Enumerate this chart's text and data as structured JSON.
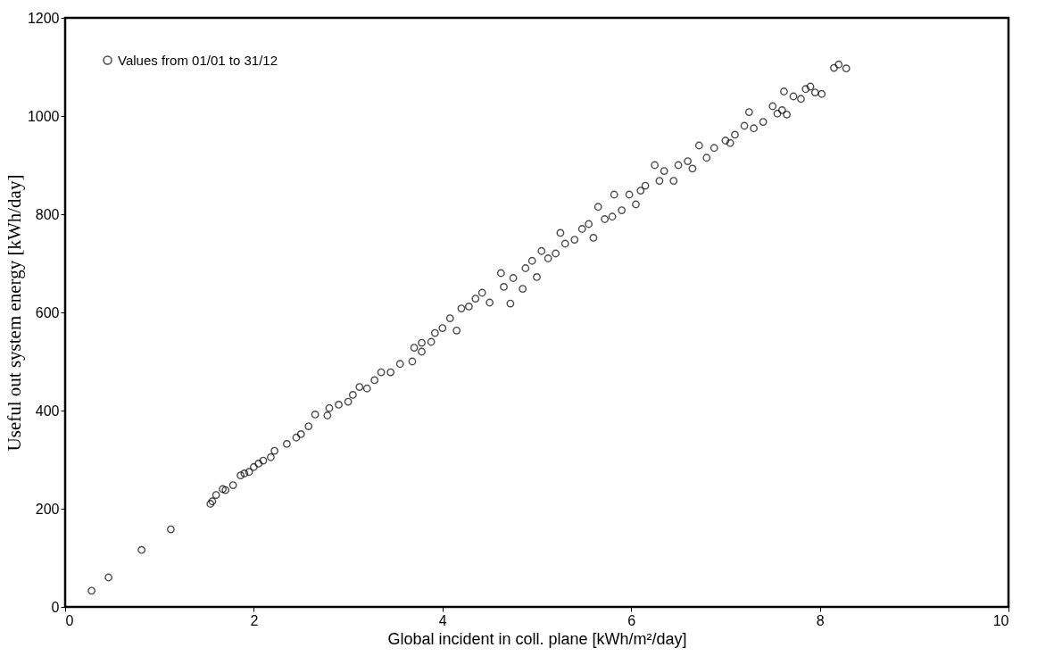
{
  "chart_data": {
    "type": "scatter",
    "xlabel": "Global incident in coll. plane [kWh/m²/day]",
    "ylabel": "Useful out system energy [kWh/day]",
    "xlim": [
      0,
      10
    ],
    "xticks": [
      0,
      2,
      4,
      6,
      8,
      10
    ],
    "ylim": [
      0,
      1200
    ],
    "yticks": [
      0,
      200,
      400,
      600,
      800,
      1000,
      1200
    ],
    "grid": false,
    "legend": "top left",
    "marker": "circle",
    "series": [
      {
        "name": "Values from 01/01 to 31/12",
        "color": "#000000",
        "x": [
          0.28,
          0.46,
          0.81,
          1.12,
          1.54,
          1.56,
          1.6,
          1.67,
          1.7,
          1.78,
          1.86,
          1.9,
          1.95,
          2.0,
          2.05,
          2.1,
          2.18,
          2.22,
          2.35,
          2.45,
          2.5,
          2.58,
          2.65,
          2.78,
          2.8,
          2.9,
          3.0,
          3.05,
          3.12,
          3.2,
          3.28,
          3.35,
          3.45,
          3.55,
          3.68,
          3.7,
          3.78,
          3.78,
          3.88,
          3.92,
          4.0,
          4.08,
          4.15,
          4.2,
          4.28,
          4.35,
          4.42,
          4.5,
          4.62,
          4.65,
          4.72,
          4.75,
          4.85,
          4.88,
          4.95,
          5.0,
          5.05,
          5.12,
          5.2,
          5.25,
          5.3,
          5.4,
          5.48,
          5.55,
          5.6,
          5.65,
          5.72,
          5.8,
          5.82,
          5.9,
          5.98,
          6.05,
          6.1,
          6.15,
          6.25,
          6.3,
          6.35,
          6.45,
          6.5,
          6.6,
          6.65,
          6.72,
          6.8,
          6.88,
          7.0,
          7.05,
          7.1,
          7.2,
          7.25,
          7.3,
          7.4,
          7.5,
          7.55,
          7.6,
          7.62,
          7.65,
          7.72,
          7.8,
          7.85,
          7.9,
          7.95,
          8.02,
          8.15,
          8.2,
          8.28
        ],
        "values": [
          33,
          60,
          116,
          158,
          210,
          215,
          228,
          240,
          238,
          248,
          268,
          272,
          275,
          285,
          292,
          298,
          305,
          318,
          332,
          345,
          352,
          368,
          392,
          390,
          405,
          412,
          418,
          432,
          448,
          445,
          462,
          478,
          478,
          495,
          500,
          528,
          520,
          538,
          540,
          558,
          568,
          588,
          563,
          608,
          612,
          628,
          640,
          620,
          680,
          652,
          618,
          670,
          648,
          690,
          705,
          672,
          725,
          710,
          720,
          762,
          740,
          748,
          770,
          780,
          752,
          815,
          790,
          795,
          840,
          808,
          840,
          820,
          848,
          858,
          900,
          868,
          888,
          868,
          900,
          908,
          893,
          940,
          915,
          935,
          950,
          945,
          962,
          980,
          1008,
          975,
          988,
          1020,
          1005,
          1012,
          1050,
          1003,
          1040,
          1035,
          1055,
          1060,
          1048,
          1045,
          1098,
          1105,
          1097
        ]
      }
    ]
  }
}
